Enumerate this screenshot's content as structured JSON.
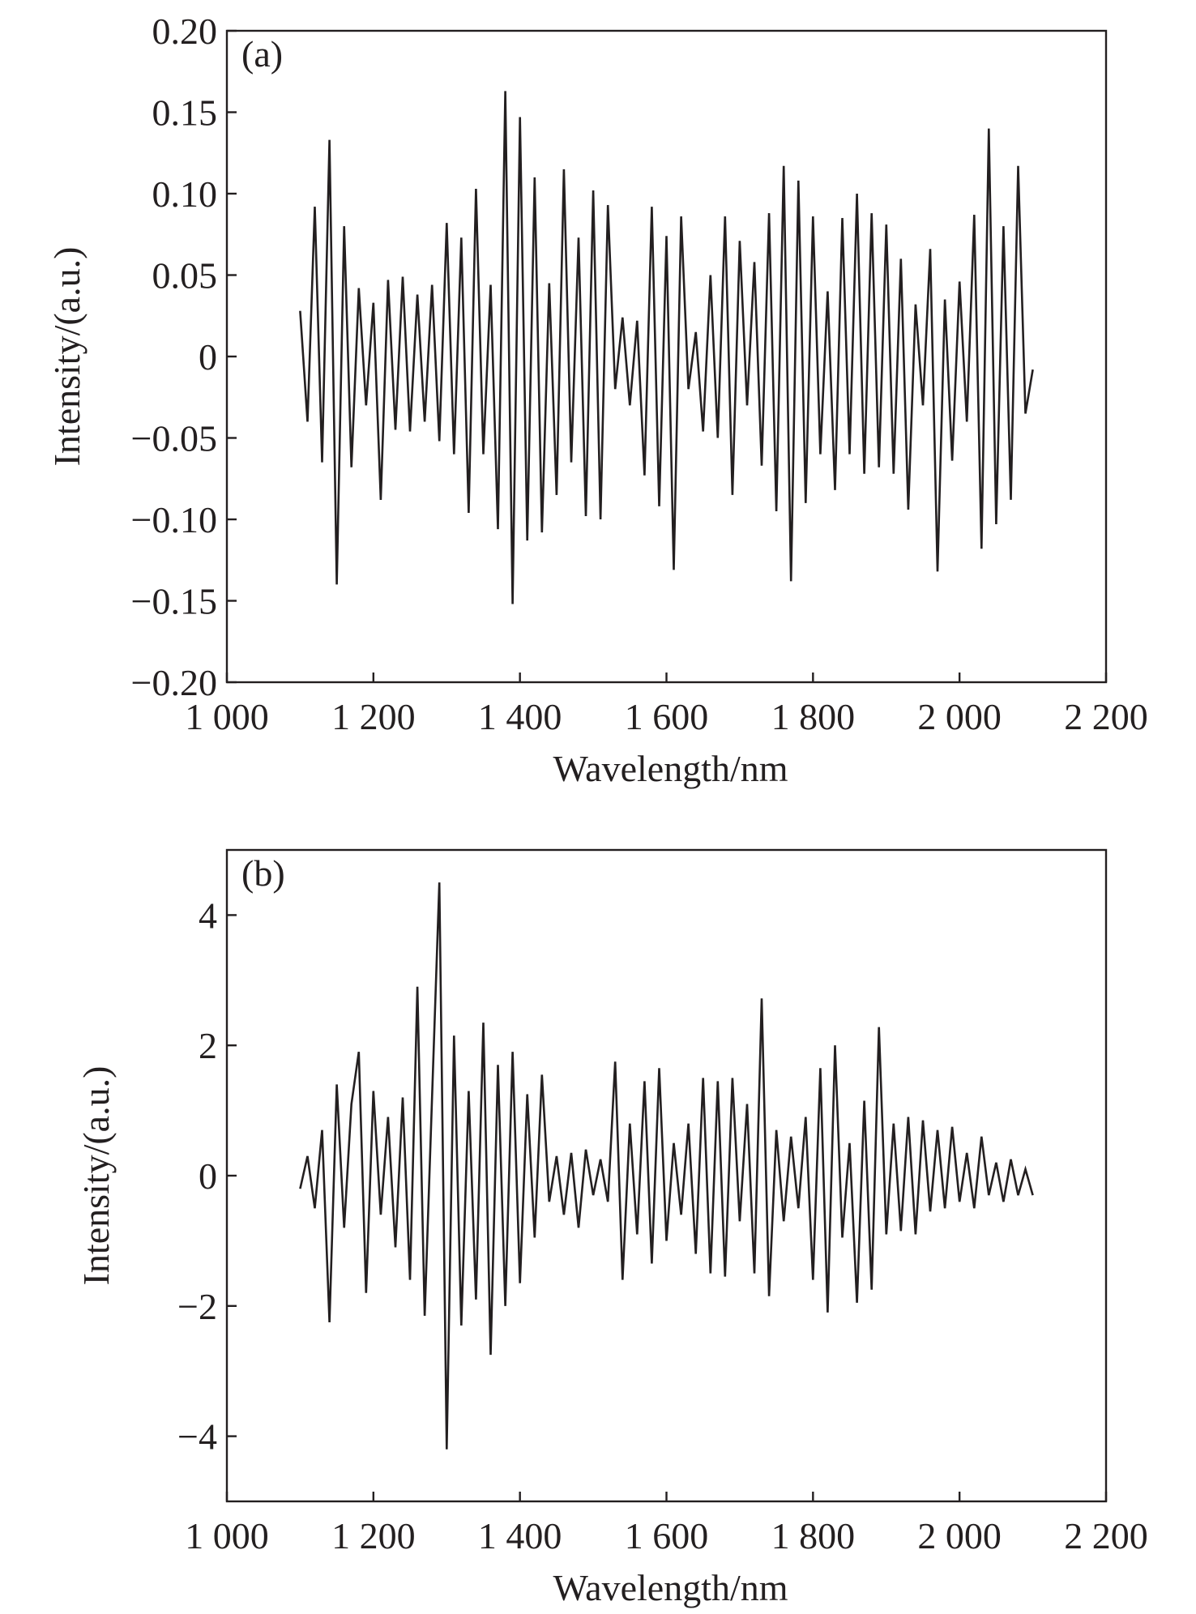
{
  "chart_data": [
    {
      "type": "line",
      "panel_label": "(a)",
      "xlabel": "Wavelength/nm",
      "ylabel": "Intensity/(a.u.)",
      "xlim": [
        1000,
        2200
      ],
      "ylim": [
        -0.2,
        0.2
      ],
      "xticks": [
        1000,
        1200,
        1400,
        1600,
        1800,
        2000,
        2200
      ],
      "xtick_labels": [
        "1 000",
        "1 200",
        "1 400",
        "1 600",
        "1 800",
        "2 000",
        "2 200"
      ],
      "yticks": [
        -0.2,
        -0.15,
        -0.1,
        -0.05,
        0,
        0.05,
        0.1,
        0.15,
        0.2
      ],
      "ytick_labels": [
        "−0.20",
        "−0.15",
        "−0.10",
        "−0.05",
        "0",
        "0.05",
        "0.10",
        "0.15",
        "0.20"
      ],
      "grid": false,
      "x_start": 1100,
      "x_step": 10,
      "values": [
        0.028,
        -0.04,
        0.092,
        -0.065,
        0.133,
        -0.14,
        0.08,
        -0.068,
        0.042,
        -0.03,
        0.033,
        -0.088,
        0.047,
        -0.045,
        0.049,
        -0.046,
        0.038,
        -0.04,
        0.044,
        -0.052,
        0.082,
        -0.06,
        0.073,
        -0.096,
        0.103,
        -0.06,
        0.044,
        -0.106,
        0.163,
        -0.152,
        0.147,
        -0.113,
        0.11,
        -0.108,
        0.045,
        -0.085,
        0.115,
        -0.065,
        0.073,
        -0.098,
        0.102,
        -0.1,
        0.093,
        -0.02,
        0.024,
        -0.03,
        0.022,
        -0.073,
        0.092,
        -0.092,
        0.074,
        -0.131,
        0.086,
        -0.02,
        0.015,
        -0.046,
        0.05,
        -0.05,
        0.086,
        -0.085,
        0.071,
        -0.03,
        0.058,
        -0.067,
        0.088,
        -0.095,
        0.117,
        -0.138,
        0.108,
        -0.09,
        0.086,
        -0.06,
        0.04,
        -0.082,
        0.085,
        -0.06,
        0.1,
        -0.072,
        0.088,
        -0.068,
        0.081,
        -0.072,
        0.06,
        -0.094,
        0.032,
        -0.03,
        0.066,
        -0.132,
        0.035,
        -0.064,
        0.046,
        -0.04,
        0.087,
        -0.118,
        0.14,
        -0.103,
        0.08,
        -0.088,
        0.117,
        -0.035,
        -0.008
      ]
    },
    {
      "type": "line",
      "panel_label": "(b)",
      "xlabel": "Wavelength/nm",
      "ylabel": "Intensity/(a.u.)",
      "xlim": [
        1000,
        2200
      ],
      "ylim": [
        -5,
        5
      ],
      "xticks": [
        1000,
        1200,
        1400,
        1600,
        1800,
        2000,
        2200
      ],
      "xtick_labels": [
        "1 000",
        "1 200",
        "1 400",
        "1 600",
        "1 800",
        "2 000",
        "2 200"
      ],
      "yticks": [
        -4,
        -2,
        0,
        2,
        4
      ],
      "ytick_labels": [
        "−4",
        "−2",
        "0",
        "2",
        "4"
      ],
      "grid": false,
      "x_start": 1100,
      "x_step": 10,
      "values": [
        -0.2,
        0.3,
        -0.5,
        0.7,
        -2.25,
        1.4,
        -0.8,
        1.1,
        1.9,
        -1.8,
        1.3,
        -0.6,
        0.9,
        -1.1,
        1.2,
        -1.6,
        2.9,
        -2.15,
        1.2,
        4.5,
        -4.2,
        2.15,
        -2.3,
        1.3,
        -1.9,
        2.35,
        -2.75,
        1.7,
        -2.0,
        1.9,
        -1.65,
        1.25,
        -0.95,
        1.55,
        -0.4,
        0.3,
        -0.6,
        0.35,
        -0.8,
        0.4,
        -0.3,
        0.25,
        -0.4,
        1.75,
        -1.6,
        0.8,
        -0.9,
        1.45,
        -1.35,
        1.65,
        -1.0,
        0.5,
        -0.6,
        0.8,
        -1.2,
        1.5,
        -1.5,
        1.45,
        -1.55,
        1.5,
        -0.7,
        1.1,
        -1.5,
        2.72,
        -1.85,
        0.7,
        -0.7,
        0.6,
        -0.5,
        0.9,
        -1.6,
        1.65,
        -2.1,
        2.0,
        -0.95,
        0.5,
        -1.95,
        1.15,
        -1.75,
        2.28,
        -0.9,
        0.8,
        -0.85,
        0.9,
        -0.9,
        0.85,
        -0.55,
        0.7,
        -0.5,
        0.75,
        -0.4,
        0.35,
        -0.5,
        0.6,
        -0.3,
        0.2,
        -0.4,
        0.25,
        -0.3,
        0.1,
        -0.3
      ]
    }
  ],
  "colors": {
    "line": "#231f20",
    "axis": "#231f20"
  }
}
